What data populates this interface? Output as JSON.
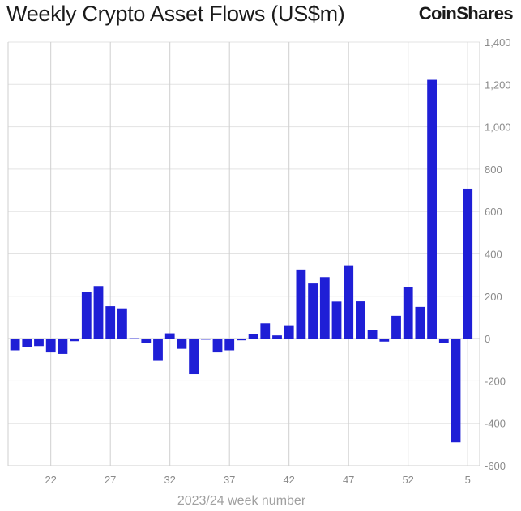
{
  "header": {
    "title": "Weekly Crypto Asset Flows (US$m)",
    "logo": "CoinShares"
  },
  "colors": {
    "bar": "#1f1fd6",
    "grid": "#e3e3e3",
    "vgrid": "#cfcfcf"
  },
  "chart_data": {
    "type": "bar",
    "title": "Weekly Crypto Asset Flows (US$m)",
    "xlabel": "2023/24 week number",
    "ylabel": "",
    "ylim": [
      -600,
      1400
    ],
    "y_ticks": [
      "-600",
      "-400",
      "-200",
      "0",
      "200",
      "400",
      "600",
      "800",
      "1,000",
      "1,200",
      "1,400"
    ],
    "x_tick_labels": [
      "22",
      "27",
      "32",
      "37",
      "42",
      "47",
      "52",
      "5"
    ],
    "grid": true,
    "categories": [
      "19",
      "20",
      "21",
      "22",
      "23",
      "24",
      "25",
      "26",
      "27",
      "28",
      "29",
      "30",
      "31",
      "32",
      "33",
      "34",
      "35",
      "36",
      "37",
      "38",
      "39",
      "40",
      "41",
      "42",
      "43",
      "44",
      "45",
      "46",
      "47",
      "48",
      "49",
      "50",
      "51",
      "52",
      "1",
      "2",
      "3",
      "4",
      "5"
    ],
    "values": [
      -55,
      -40,
      -35,
      -65,
      -72,
      -12,
      220,
      248,
      153,
      143,
      2,
      -20,
      -105,
      25,
      -48,
      -168,
      -5,
      -65,
      -55,
      -8,
      20,
      72,
      15,
      63,
      326,
      260,
      290,
      175,
      346,
      176,
      40,
      -14,
      108,
      242,
      150,
      1222,
      -22,
      -490,
      708
    ]
  }
}
